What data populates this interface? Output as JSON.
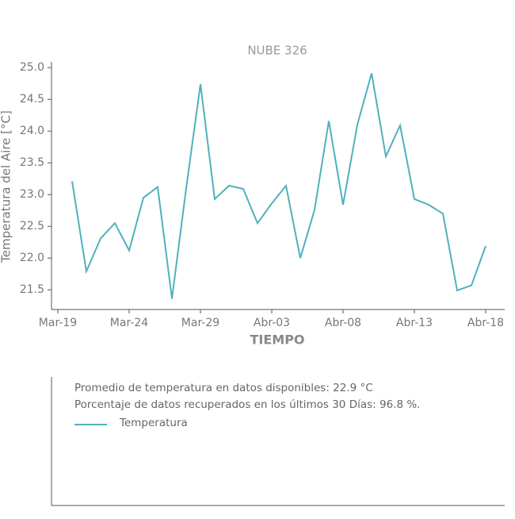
{
  "chart_data": {
    "type": "line",
    "title": "NUBE 326",
    "xlabel": "TIEMPO",
    "ylabel": "Temperatura del Aire [°C]",
    "x": [
      "Mar-19",
      "Mar-20",
      "Mar-21",
      "Mar-22",
      "Mar-23",
      "Mar-24",
      "Mar-25",
      "Mar-26",
      "Mar-27",
      "Mar-28",
      "Mar-29",
      "Mar-30",
      "Mar-31",
      "Abr-01",
      "Abr-02",
      "Abr-03",
      "Abr-04",
      "Abr-05",
      "Abr-06",
      "Abr-07",
      "Abr-08",
      "Abr-09",
      "Abr-10",
      "Abr-11",
      "Abr-12",
      "Abr-13",
      "Abr-14",
      "Abr-15",
      "Abr-16",
      "Abr-17",
      "Abr-18"
    ],
    "series": [
      {
        "name": "Temperatura",
        "color": "#4fb1bd",
        "values": [
          null,
          23.21,
          21.79,
          22.31,
          22.55,
          22.12,
          22.95,
          23.12,
          21.36,
          23.1,
          24.74,
          22.93,
          23.14,
          23.09,
          22.55,
          22.86,
          23.14,
          22.0,
          22.76,
          24.16,
          22.84,
          24.1,
          24.91,
          23.6,
          24.09,
          22.93,
          22.84,
          22.7,
          21.49,
          21.57,
          22.19
        ]
      }
    ],
    "xticks": [
      "Mar-19",
      "Mar-24",
      "Mar-29",
      "Abr-03",
      "Abr-08",
      "Abr-13",
      "Abr-18"
    ],
    "ylim": [
      21.19,
      25.09
    ],
    "yticks": [
      21.5,
      {
        "value": 22,
        "label": "22.0"
      },
      22.5,
      {
        "value": 23,
        "label": "23.0"
      },
      23.5,
      {
        "value": 24,
        "label": "24.0"
      },
      24.5,
      {
        "value": 25,
        "label": "25.0"
      }
    ],
    "annotations": [
      "Promedio de temperatura en datos disponibles: 22.9 °C",
      "Porcentaje de datos recuperados en los últimos 30 Días: 96.8 %."
    ]
  }
}
